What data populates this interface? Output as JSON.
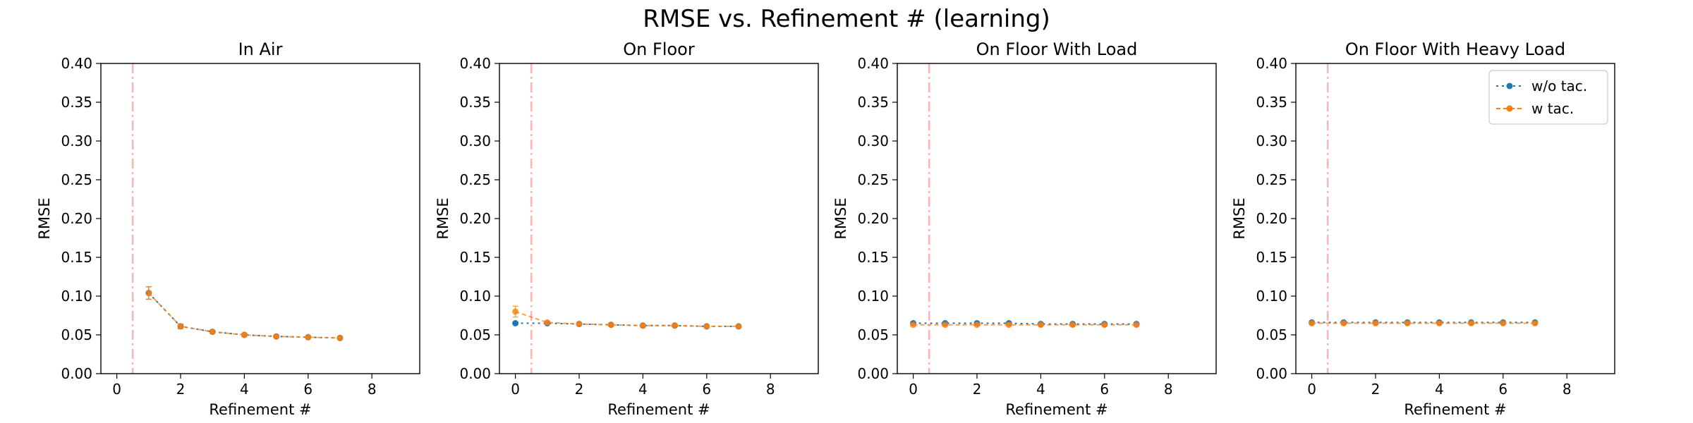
{
  "suptitle": "RMSE vs. Refinement # (learning)",
  "colors": {
    "wo_tac": "#1f77b4",
    "w_tac": "#ff7f0e",
    "vline": "#ffb3b3"
  },
  "chart_data": [
    {
      "type": "line",
      "title": "In Air",
      "xlabel": "Refinement #",
      "ylabel": "RMSE",
      "xlim": [
        -0.5,
        9.5
      ],
      "ylim": [
        0,
        0.4
      ],
      "xticks": [
        "0",
        "2",
        "4",
        "6",
        "8"
      ],
      "yticks": [
        "0.00",
        "0.05",
        "0.10",
        "0.15",
        "0.20",
        "0.25",
        "0.30",
        "0.35",
        "0.40"
      ],
      "vline_x": 0.5,
      "legend": false,
      "series": [
        {
          "name": "w/o tac.",
          "x": [
            1,
            2,
            3,
            4,
            5,
            6,
            7
          ],
          "values": [
            0.104,
            0.061,
            0.054,
            0.05,
            0.048,
            0.047,
            0.046
          ],
          "err": [
            0.008,
            0.003,
            0.002,
            0.002,
            0.001,
            0.001,
            0.001
          ]
        },
        {
          "name": "w tac.",
          "x": [
            1,
            2,
            3,
            4,
            5,
            6,
            7
          ],
          "values": [
            0.104,
            0.061,
            0.054,
            0.05,
            0.048,
            0.047,
            0.046
          ],
          "err": [
            0.008,
            0.003,
            0.002,
            0.002,
            0.001,
            0.001,
            0.001
          ]
        }
      ]
    },
    {
      "type": "line",
      "title": "On Floor",
      "xlabel": "Refinement #",
      "ylabel": "RMSE",
      "xlim": [
        -0.5,
        9.5
      ],
      "ylim": [
        0,
        0.4
      ],
      "xticks": [
        "0",
        "2",
        "4",
        "6",
        "8"
      ],
      "yticks": [
        "0.00",
        "0.05",
        "0.10",
        "0.15",
        "0.20",
        "0.25",
        "0.30",
        "0.35",
        "0.40"
      ],
      "vline_x": 0.5,
      "legend": false,
      "series": [
        {
          "name": "w/o tac.",
          "x": [
            0,
            1,
            2,
            3,
            4,
            5,
            6,
            7
          ],
          "values": [
            0.065,
            0.065,
            0.064,
            0.063,
            0.062,
            0.062,
            0.061,
            0.061
          ],
          "err": [
            0.001,
            0.001,
            0.001,
            0.001,
            0.001,
            0.001,
            0.001,
            0.001
          ]
        },
        {
          "name": "w tac.",
          "x": [
            0,
            1,
            2,
            3,
            4,
            5,
            6,
            7
          ],
          "values": [
            0.08,
            0.066,
            0.064,
            0.063,
            0.062,
            0.062,
            0.061,
            0.061
          ],
          "err": [
            0.007,
            0.002,
            0.001,
            0.001,
            0.001,
            0.001,
            0.001,
            0.001
          ]
        }
      ]
    },
    {
      "type": "line",
      "title": "On Floor With Load",
      "xlabel": "Refinement #",
      "ylabel": "RMSE",
      "xlim": [
        -0.5,
        9.5
      ],
      "ylim": [
        0,
        0.4
      ],
      "xticks": [
        "0",
        "2",
        "4",
        "6",
        "8"
      ],
      "yticks": [
        "0.00",
        "0.05",
        "0.10",
        "0.15",
        "0.20",
        "0.25",
        "0.30",
        "0.35",
        "0.40"
      ],
      "vline_x": 0.5,
      "legend": false,
      "series": [
        {
          "name": "w/o tac.",
          "x": [
            0,
            1,
            2,
            3,
            4,
            5,
            6,
            7
          ],
          "values": [
            0.065,
            0.065,
            0.065,
            0.065,
            0.064,
            0.064,
            0.064,
            0.064
          ],
          "err": [
            0.001,
            0.001,
            0.001,
            0.001,
            0.001,
            0.001,
            0.001,
            0.001
          ]
        },
        {
          "name": "w tac.",
          "x": [
            0,
            1,
            2,
            3,
            4,
            5,
            6,
            7
          ],
          "values": [
            0.063,
            0.063,
            0.063,
            0.063,
            0.063,
            0.063,
            0.063,
            0.063
          ],
          "err": [
            0.001,
            0.001,
            0.001,
            0.001,
            0.001,
            0.001,
            0.001,
            0.001
          ]
        }
      ]
    },
    {
      "type": "line",
      "title": "On Floor With Heavy Load",
      "xlabel": "Refinement #",
      "ylabel": "RMSE",
      "xlim": [
        -0.5,
        9.5
      ],
      "ylim": [
        0,
        0.4
      ],
      "xticks": [
        "0",
        "2",
        "4",
        "6",
        "8"
      ],
      "yticks": [
        "0.00",
        "0.05",
        "0.10",
        "0.15",
        "0.20",
        "0.25",
        "0.30",
        "0.35",
        "0.40"
      ],
      "vline_x": 0.5,
      "legend": true,
      "legend_loc": "upper right",
      "series": [
        {
          "name": "w/o tac.",
          "x": [
            0,
            1,
            2,
            3,
            4,
            5,
            6,
            7
          ],
          "values": [
            0.066,
            0.066,
            0.066,
            0.066,
            0.066,
            0.066,
            0.066,
            0.066
          ],
          "err": [
            0.001,
            0.001,
            0.001,
            0.001,
            0.001,
            0.001,
            0.001,
            0.001
          ]
        },
        {
          "name": "w tac.",
          "x": [
            0,
            1,
            2,
            3,
            4,
            5,
            6,
            7
          ],
          "values": [
            0.065,
            0.065,
            0.065,
            0.065,
            0.065,
            0.065,
            0.065,
            0.065
          ],
          "err": [
            0.001,
            0.001,
            0.001,
            0.001,
            0.001,
            0.001,
            0.001,
            0.001
          ]
        }
      ]
    }
  ]
}
